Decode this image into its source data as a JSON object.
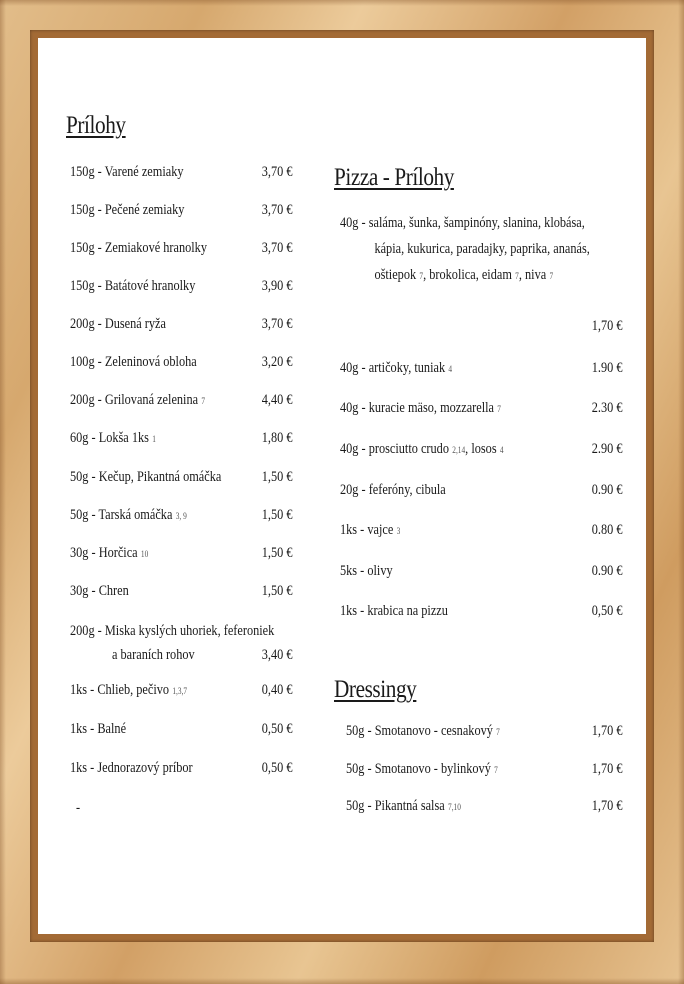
{
  "sections": {
    "prilohy": {
      "title": "Prílohy",
      "items": [
        {
          "name": "150g - Varené zemiaky",
          "allergens": "",
          "price": "3,70 €"
        },
        {
          "name": "150g - Pečené zemiaky",
          "allergens": "",
          "price": "3,70 €"
        },
        {
          "name": "150g - Zemiakové hranolky",
          "allergens": "",
          "price": "3,70 €"
        },
        {
          "name": "150g - Batátové hranolky",
          "allergens": "",
          "price": "3,90 €"
        },
        {
          "name": "200g - Dusená ryža",
          "allergens": "",
          "price": "3,70 €"
        },
        {
          "name": "100g - Zeleninová obloha",
          "allergens": "",
          "price": "3,20 €"
        },
        {
          "name": "200g - Grilovaná zelenina",
          "allergens": "7",
          "price": "4,40 €"
        },
        {
          "name": "60g - Lokša 1ks",
          "allergens": "1",
          "price": "1,80 €"
        },
        {
          "name": "50g - Kečup, Pikantná omáčka",
          "allergens": "",
          "price": "1,50 €"
        },
        {
          "name": "50g - Tarská omáčka",
          "allergens": "3, 9",
          "price": "1,50 €"
        },
        {
          "name": "30g - Horčica",
          "allergens": "10",
          "price": "1,50 €"
        },
        {
          "name": "30g - Chren",
          "allergens": "",
          "price": "1,50 €"
        },
        {
          "name": "200g - Miska kyslých uhoriek, feferoniek",
          "line2": "a baraních rohov",
          "allergens": "",
          "price": "3,40 €"
        },
        {
          "name": "1ks - Chlieb, pečivo",
          "allergens": "1,3,7",
          "price": "0,40 €"
        },
        {
          "name": "1ks -  Balné",
          "allergens": "",
          "price": "0,50 €"
        },
        {
          "name": "1ks - Jednorazový príbor",
          "allergens": "",
          "price": "0,50 €"
        }
      ],
      "trailing": "-"
    },
    "pizza": {
      "title": "Pizza - Prílohy",
      "first": {
        "line1": "40g - saláma, šunka, šampinóny, slanina, klobása,",
        "line2": "kápia, kukurica, paradajky, paprika, ananás,",
        "line3a": "oštiepok",
        "a1": "7",
        "line3b": ", brokolica, eidam",
        "a2": "7",
        "line3c": ", niva",
        "a3": "7",
        "price": "1,70 €"
      },
      "items": [
        {
          "name": "40g - artičoky, tuniak",
          "allergens": "4",
          "price": "1.90 €"
        },
        {
          "name": "40g - kuracie mäso, mozzarella",
          "allergens": "7",
          "price": "2.30 €"
        },
        {
          "name": "40g - prosciutto crudo",
          "allergens": "2,14",
          "name2": ", losos",
          "allergens2": "4",
          "price": "2.90 €"
        },
        {
          "name": "20g - feferóny, cibula",
          "allergens": "",
          "price": "0.90 €"
        },
        {
          "name": "1ks - vajce",
          "allergens": "3",
          "price": "0.80 €"
        },
        {
          "name": "5ks - olivy",
          "allergens": "",
          "price": "0.90 €"
        },
        {
          "name": "1ks - krabica na pizzu",
          "allergens": "",
          "price": "0,50 €"
        }
      ]
    },
    "dressingy": {
      "title": "Dressingy",
      "items": [
        {
          "name": "50g - Smotanovo - cesnakový",
          "allergens": "7",
          "price": "1,70 €"
        },
        {
          "name": "50g - Smotanovo - bylinkový",
          "allergens": "7",
          "price": "1,70 €"
        },
        {
          "name": "50g - Pikantná salsa",
          "allergens": "7,10",
          "price": "1,70 €"
        }
      ]
    }
  }
}
